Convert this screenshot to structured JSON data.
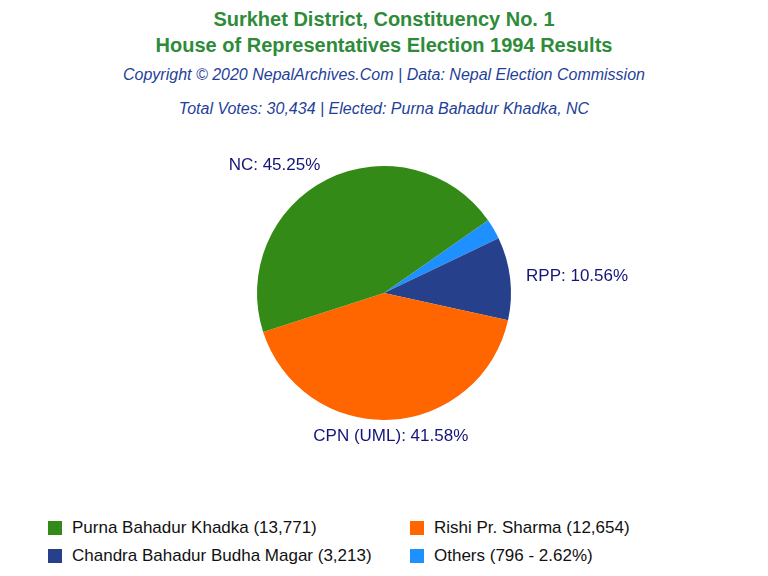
{
  "chart_data": {
    "type": "pie",
    "title": "Surkhet District, Constituency No. 1",
    "subtitle": "House of Representatives Election 1994 Results",
    "annotations": [
      "Copyright © 2020 NepalArchives.Com | Data: Nepal Election Commission",
      "Total Votes: 30,434 | Elected: Purna Bahadur Khadka, NC"
    ],
    "categories": [
      "Purna Bahadur Khadka (13,771)",
      "Rishi Pr. Sharma (12,654)",
      "Chandra Bahadur Budha Magar (3,213)",
      "Others (796 - 2.62%)"
    ],
    "values": [
      45.25,
      41.58,
      10.56,
      2.62
    ],
    "value_labels": [
      "NC: 45.25%",
      "CPN (UML): 41.58%",
      "RPP: 10.56%",
      null
    ],
    "colors": [
      "#338a17",
      "#ff6600",
      "#27408b",
      "#1e90ff"
    ],
    "data_labels": true,
    "legend": "bottom"
  }
}
